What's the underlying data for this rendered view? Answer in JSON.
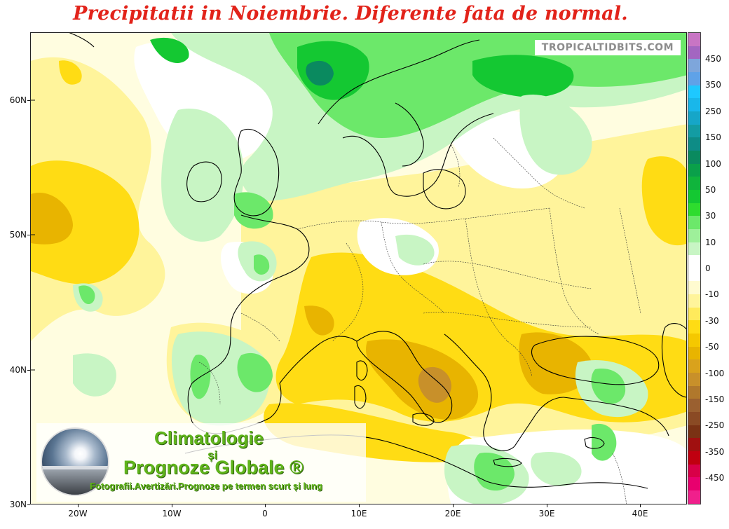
{
  "title": "Precipitatii in Noiembrie. Diferente fata de normal.",
  "credit": "TROPICALTIDBITS.COM",
  "axes": {
    "lat_labels": [
      "60N",
      "50N",
      "40N",
      "30N"
    ],
    "lon_labels": [
      "20W",
      "10W",
      "0",
      "10E",
      "20E",
      "30E",
      "40E"
    ]
  },
  "legend": {
    "labels": [
      "450",
      "350",
      "250",
      "150",
      "100",
      "50",
      "30",
      "10",
      "0",
      "-10",
      "-30",
      "-50",
      "-100",
      "-150",
      "-250",
      "-350",
      "-450"
    ],
    "colors": [
      "#c875c4",
      "#a366c1",
      "#7ea6db",
      "#5fa2e8",
      "#1ec8ff",
      "#19b7ea",
      "#16a6c8",
      "#139ca3",
      "#0e8c86",
      "#0a8a5f",
      "#0aa04a",
      "#10b43c",
      "#14c832",
      "#2edc2e",
      "#6ce86a",
      "#9ef09a",
      "#c8f5c4",
      "#ffffff",
      "#ffffff",
      "#fffbd0",
      "#fff49b",
      "#ffea5c",
      "#ffdc14",
      "#f5c800",
      "#e8b400",
      "#d9a21c",
      "#c8902a",
      "#b0782c",
      "#9a6030",
      "#8a4a24",
      "#7a3214",
      "#a01010",
      "#c00010",
      "#d80048",
      "#e8006e",
      "#f0208c"
    ]
  },
  "branding": {
    "line1": "Climatologie",
    "amp": "și",
    "line2": "Prognoze Globale ®",
    "line3": "Fotografii.Avertizări.Prognoze pe termen scurt și lung"
  },
  "map_colors": {
    "ocean_base": "#fffde0",
    "yellow_light": "#fff49b",
    "yellow": "#ffdc14",
    "orange": "#e8b400",
    "brown": "#c8902a",
    "green_light": "#c8f5c4",
    "green": "#6ce86a",
    "green_dark": "#14c832",
    "green_deep": "#0a8a5f",
    "white": "#ffffff",
    "coast": "#000000",
    "border": "#333333"
  }
}
